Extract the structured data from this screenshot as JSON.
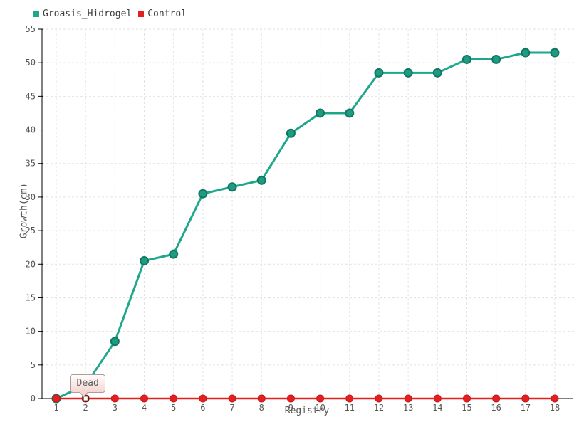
{
  "chart_data": {
    "type": "line",
    "x": [
      1,
      2,
      3,
      4,
      5,
      6,
      7,
      8,
      9,
      10,
      11,
      12,
      13,
      14,
      15,
      16,
      17,
      18
    ],
    "xlabel": "Registry",
    "ylabel": "Growth(cm)",
    "ylim": [
      0,
      55
    ],
    "yticks": [
      0,
      5,
      10,
      15,
      20,
      25,
      30,
      35,
      40,
      45,
      50,
      55
    ],
    "grid": true,
    "legend_position": "top-left",
    "series": [
      {
        "name": "Groasis_Hidrogel",
        "color": "#1fa78c",
        "marker_fill": "#1c9c82",
        "marker_stroke": "#127661",
        "values": [
          0,
          2,
          8.5,
          20.5,
          21.5,
          30.5,
          31.5,
          32.5,
          39.5,
          42.5,
          42.5,
          48.5,
          48.5,
          48.5,
          50.5,
          50.5,
          51.5,
          51.5
        ]
      },
      {
        "name": "Control",
        "color": "#e3201f",
        "marker_fill": "#e3201f",
        "marker_stroke": "#c5161a",
        "values": [
          0,
          0,
          0,
          0,
          0,
          0,
          0,
          0,
          0,
          0,
          0,
          0,
          0,
          0,
          0,
          0,
          0,
          0
        ]
      }
    ],
    "tooltip": {
      "text": "Dead",
      "target_series": "Control",
      "target_x": 2
    }
  },
  "colors": {
    "grid": "#e2e2e2",
    "axis": "#000000",
    "tick_text": "#555555",
    "legend_text": "#3d3d3d",
    "tooltip_border": "#ab9d9d",
    "tooltip_bg": "#f4d5d2"
  }
}
